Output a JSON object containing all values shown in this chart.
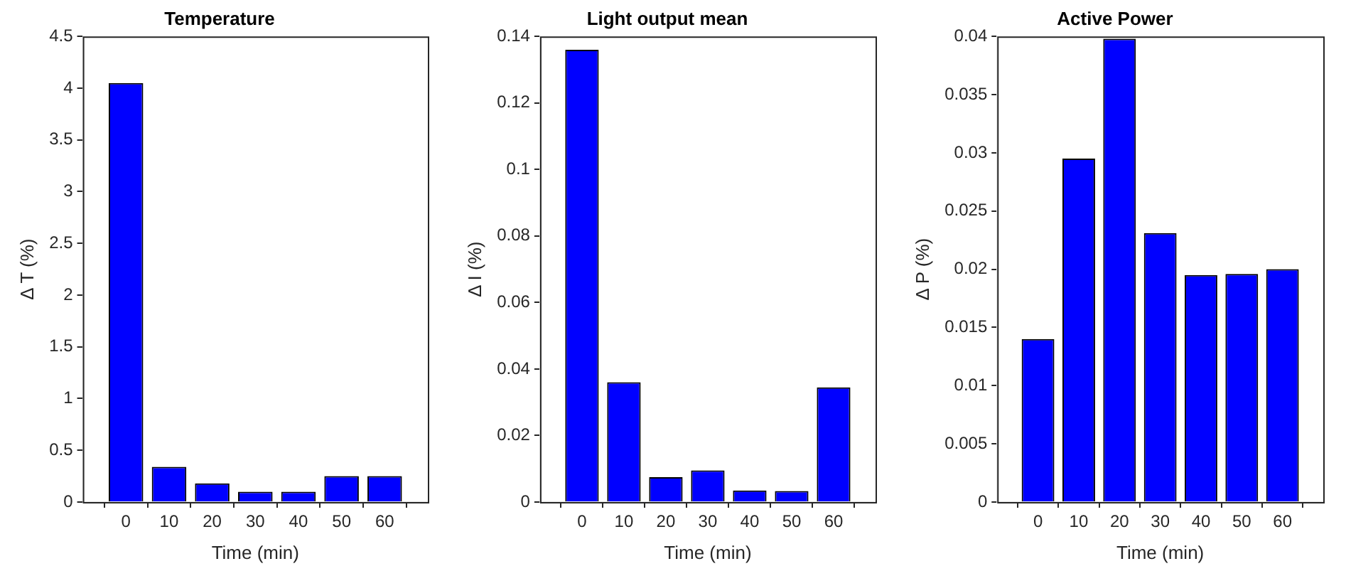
{
  "chart_data": [
    {
      "type": "bar",
      "title": "Temperature",
      "xlabel": "Time (min)",
      "ylabel": "Δ T (%)",
      "x": [
        0,
        10,
        20,
        30,
        40,
        50,
        60
      ],
      "xlim": [
        -10,
        70
      ],
      "xticks": [
        0,
        10,
        20,
        30,
        40,
        50,
        60
      ],
      "values": [
        4.05,
        0.34,
        0.18,
        0.1,
        0.1,
        0.25,
        0.25
      ],
      "color": "#0000ff",
      "ylim": [
        0,
        4.5
      ],
      "yticks": [
        0,
        0.5,
        1,
        1.5,
        2,
        2.5,
        3,
        3.5,
        4,
        4.5
      ],
      "grid": false,
      "legend": false
    },
    {
      "type": "bar",
      "title": "Light output mean",
      "xlabel": "Time (min)",
      "ylabel": "Δ I (%)",
      "x": [
        0,
        10,
        20,
        30,
        40,
        50,
        60
      ],
      "xlim": [
        -10,
        70
      ],
      "xticks": [
        0,
        10,
        20,
        30,
        40,
        50,
        60
      ],
      "values": [
        0.136,
        0.036,
        0.0075,
        0.0095,
        0.0035,
        0.0033,
        0.0345
      ],
      "color": "#0000ff",
      "ylim": [
        0,
        0.14
      ],
      "yticks": [
        0,
        0.02,
        0.04,
        0.06,
        0.08,
        0.1,
        0.12,
        0.14
      ],
      "grid": false,
      "legend": false
    },
    {
      "type": "bar",
      "title": "Active Power",
      "xlabel": "Time (min)",
      "ylabel": "Δ P (%)",
      "x": [
        0,
        10,
        20,
        30,
        40,
        50,
        60
      ],
      "xlim": [
        -10,
        70
      ],
      "xticks": [
        0,
        10,
        20,
        30,
        40,
        50,
        60
      ],
      "values": [
        0.014,
        0.0295,
        0.0398,
        0.0231,
        0.0195,
        0.0196,
        0.02
      ],
      "color": "#0000ff",
      "ylim": [
        0,
        0.04
      ],
      "yticks": [
        0,
        0.005,
        0.01,
        0.015,
        0.02,
        0.025,
        0.03,
        0.035,
        0.04
      ],
      "grid": false,
      "legend": false
    }
  ]
}
